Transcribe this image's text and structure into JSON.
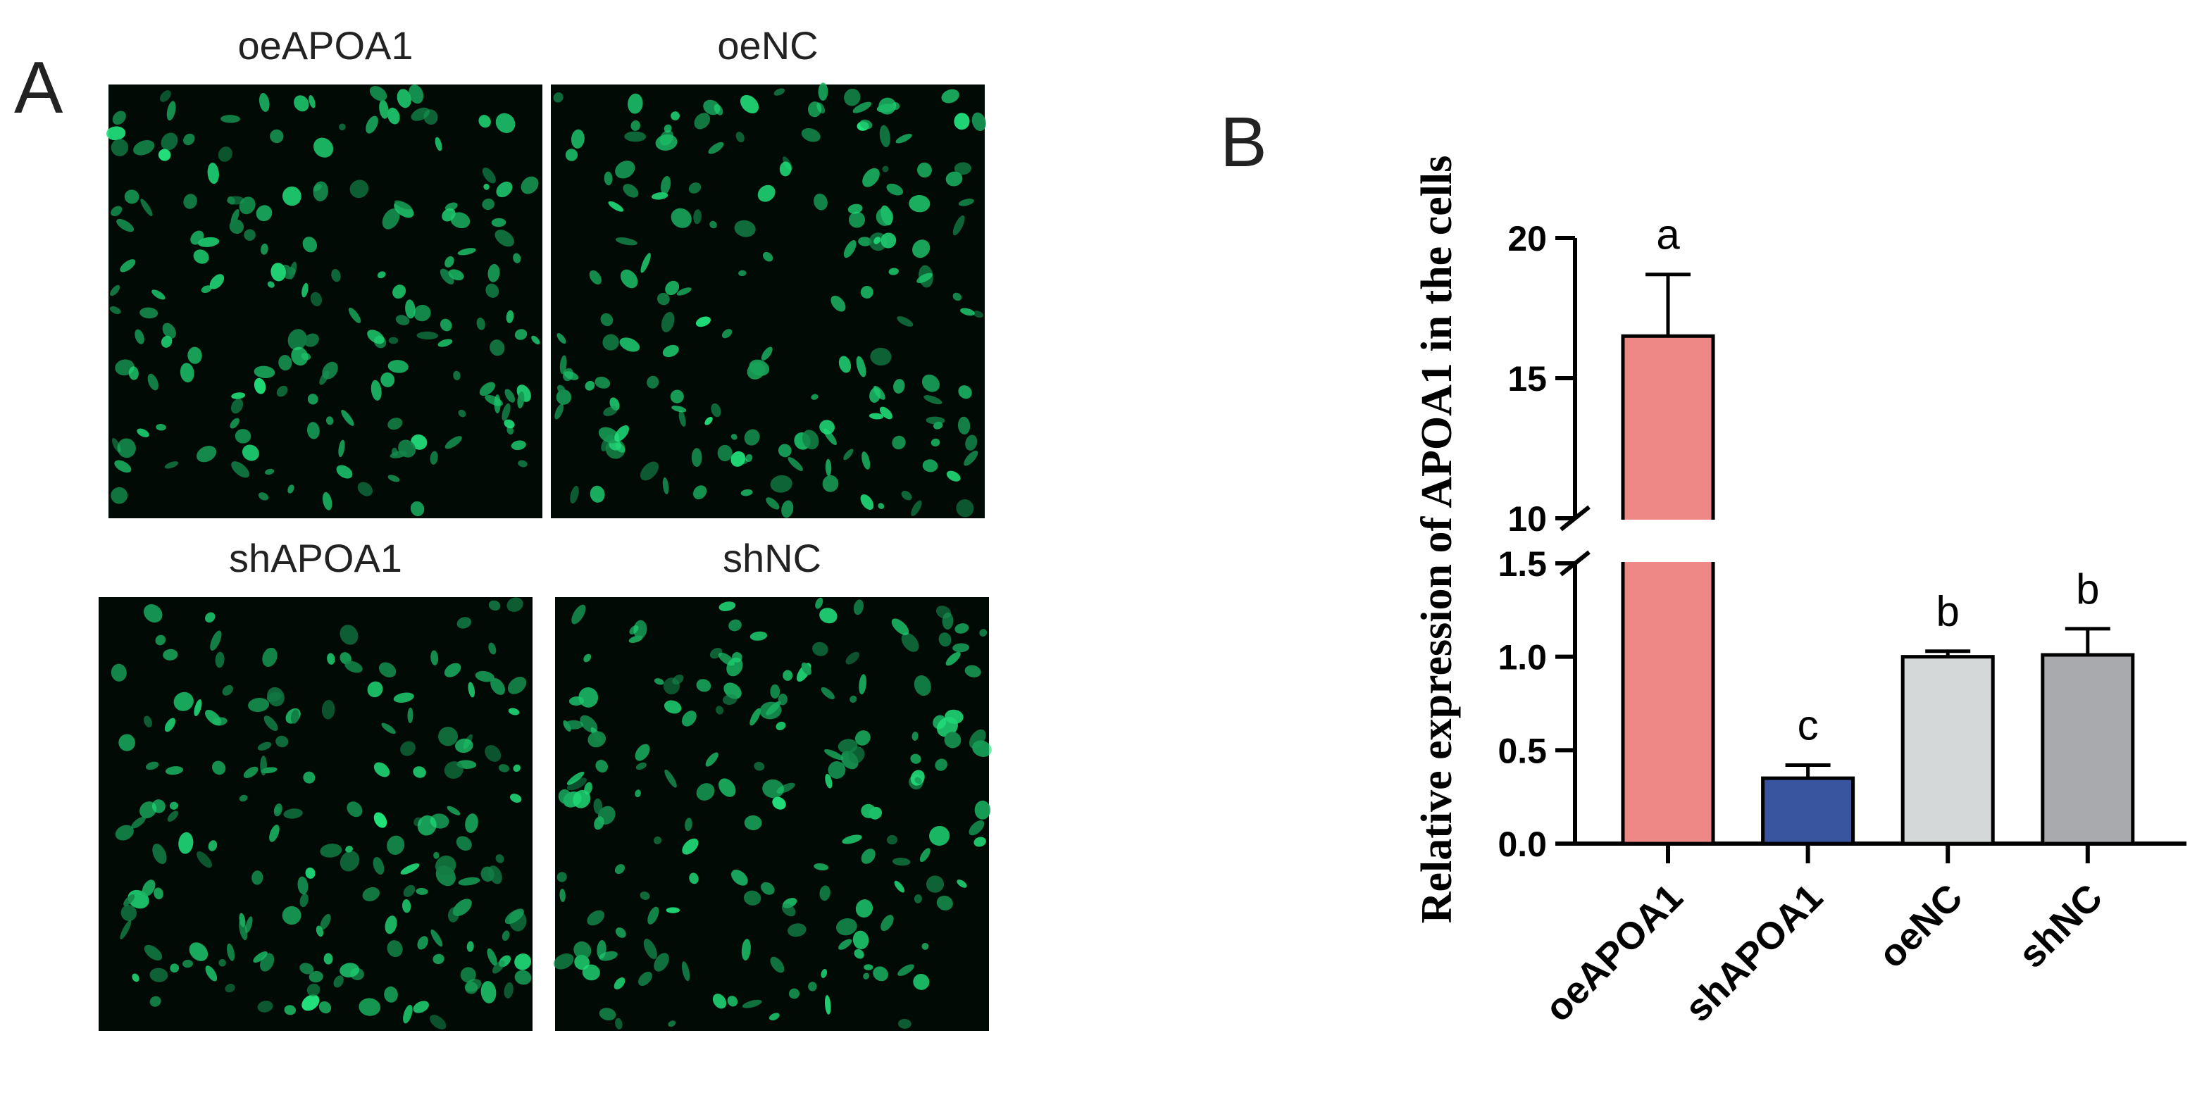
{
  "panel_a": {
    "label": "A",
    "images": [
      {
        "label": "oeAPOA1"
      },
      {
        "label": "oeNC"
      },
      {
        "label": "shAPOA1"
      },
      {
        "label": "shNC"
      }
    ]
  },
  "chart_data": {
    "type": "bar",
    "panel_label": "B",
    "y_label": "Relative expression of APOA1 in the cells",
    "categories": [
      "oeAPOA1",
      "shAPOA1",
      "oeNC",
      "shNC"
    ],
    "values": [
      16.5,
      0.35,
      1.0,
      1.01
    ],
    "errors": [
      2.2,
      0.07,
      0.03,
      0.14
    ],
    "annotations": [
      "a",
      "c",
      "b",
      "b"
    ],
    "colors": [
      "#ee8886",
      "#3a559f",
      "#d5d8d9",
      "#a9aaad"
    ],
    "ylim": [
      0,
      20
    ],
    "y_break": [
      1.5,
      10
    ],
    "yticks": [
      {
        "value": 0,
        "label": "0.0"
      },
      0.5,
      {
        "value": 1,
        "label": "1.0"
      },
      1.5,
      10,
      15,
      20
    ]
  }
}
